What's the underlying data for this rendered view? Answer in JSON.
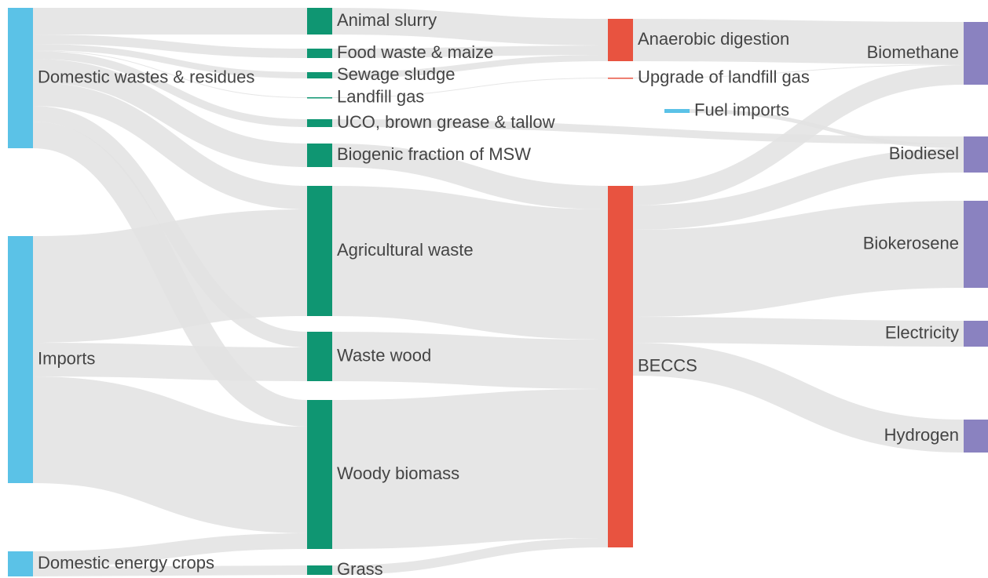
{
  "chart_data": {
    "type": "sankey",
    "nodes": [
      {
        "name": "Domestic wastes & residues",
        "color": "#5bc2e7"
      },
      {
        "name": "Imports",
        "color": "#5bc2e7"
      },
      {
        "name": "Domestic energy crops",
        "color": "#5bc2e7"
      },
      {
        "name": "Animal slurry",
        "color": "#0f9672"
      },
      {
        "name": "Food waste & maize",
        "color": "#0f9672"
      },
      {
        "name": "Sewage sludge",
        "color": "#0f9672"
      },
      {
        "name": "Landfill gas",
        "color": "#0f9672"
      },
      {
        "name": "UCO, brown grease & tallow",
        "color": "#0f9672"
      },
      {
        "name": "Biogenic fraction of MSW",
        "color": "#0f9672"
      },
      {
        "name": "Agricultural waste",
        "color": "#0f9672"
      },
      {
        "name": "Waste wood",
        "color": "#0f9672"
      },
      {
        "name": "Woody biomass",
        "color": "#0f9672"
      },
      {
        "name": "Grass",
        "color": "#0f9672"
      },
      {
        "name": "Anaerobic digestion",
        "color": "#e85340"
      },
      {
        "name": "Upgrade of landfill gas",
        "color": "#e85340"
      },
      {
        "name": "Fuel imports",
        "color": "#5bc2e7"
      },
      {
        "name": "BECCS",
        "color": "#e85340"
      },
      {
        "name": "Biomethane",
        "color": "#8a82c0"
      },
      {
        "name": "Biodiesel",
        "color": "#8a82c0"
      },
      {
        "name": "Biokerosene",
        "color": "#8a82c0"
      },
      {
        "name": "Electricity",
        "color": "#8a82c0"
      },
      {
        "name": "Hydrogen",
        "color": "#8a82c0"
      }
    ],
    "links": [
      {
        "source": 0,
        "target": 3,
        "value": 34
      },
      {
        "source": 0,
        "target": 4,
        "value": 12
      },
      {
        "source": 0,
        "target": 5,
        "value": 8
      },
      {
        "source": 0,
        "target": 6,
        "value": 1
      },
      {
        "source": 0,
        "target": 7,
        "value": 10
      },
      {
        "source": 0,
        "target": 8,
        "value": 30
      },
      {
        "source": 0,
        "target": 9,
        "value": 30
      },
      {
        "source": 0,
        "target": 10,
        "value": 20
      },
      {
        "source": 0,
        "target": 11,
        "value": 34
      },
      {
        "source": 1,
        "target": 9,
        "value": 136
      },
      {
        "source": 1,
        "target": 10,
        "value": 43
      },
      {
        "source": 1,
        "target": 11,
        "value": 136
      },
      {
        "source": 2,
        "target": 11,
        "value": 20
      },
      {
        "source": 2,
        "target": 12,
        "value": 12
      },
      {
        "source": 3,
        "target": 13,
        "value": 34
      },
      {
        "source": 4,
        "target": 13,
        "value": 12
      },
      {
        "source": 5,
        "target": 13,
        "value": 8
      },
      {
        "source": 6,
        "target": 14,
        "value": 1
      },
      {
        "source": 7,
        "target": 18,
        "value": 10
      },
      {
        "source": 8,
        "target": 16,
        "value": 30
      },
      {
        "source": 9,
        "target": 16,
        "value": 166
      },
      {
        "source": 10,
        "target": 16,
        "value": 63
      },
      {
        "source": 11,
        "target": 16,
        "value": 190
      },
      {
        "source": 12,
        "target": 16,
        "value": 12
      },
      {
        "source": 13,
        "target": 17,
        "value": 54
      },
      {
        "source": 14,
        "target": 17,
        "value": 1
      },
      {
        "source": 15,
        "target": 18,
        "value": 5
      },
      {
        "source": 16,
        "target": 17,
        "value": 25
      },
      {
        "source": 16,
        "target": 18,
        "value": 31
      },
      {
        "source": 16,
        "target": 19,
        "value": 111
      },
      {
        "source": 16,
        "target": 20,
        "value": 33
      },
      {
        "source": 16,
        "target": 21,
        "value": 42
      }
    ]
  }
}
